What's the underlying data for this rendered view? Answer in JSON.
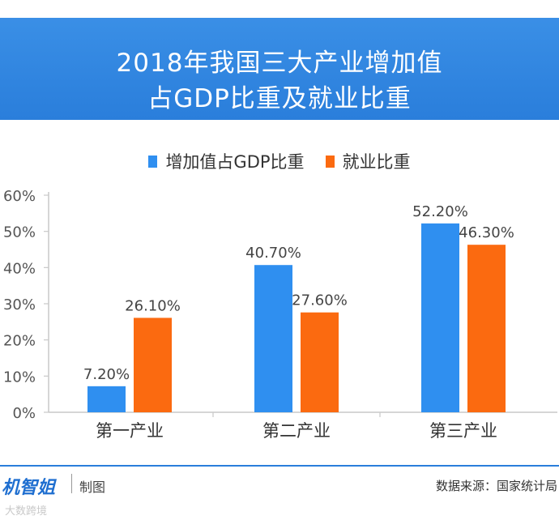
{
  "header": {
    "title_line1": "2018年我国三大产业增加值",
    "title_line2": "占GDP比重及就业比重"
  },
  "colors": {
    "header_bg": "#2a7edb",
    "series_blue": "#2f8ff0",
    "series_orange": "#fb6a10",
    "axis": "#c9c9c9"
  },
  "chart_data": {
    "type": "bar",
    "title": "2018年我国三大产业增加值占GDP比重及就业比重",
    "categories": [
      "第一产业",
      "第二产业",
      "第三产业"
    ],
    "series": [
      {
        "name": "增加值占GDP比重",
        "values": [
          7.2,
          40.7,
          52.2
        ],
        "labels": [
          "7.20%",
          "40.70%",
          "52.20%"
        ]
      },
      {
        "name": "就业比重",
        "values": [
          26.1,
          27.6,
          46.3
        ],
        "labels": [
          "26.10%",
          "27.60%",
          "46.30%"
        ]
      }
    ],
    "y_ticks": [
      "0%",
      "10%",
      "20%",
      "30%",
      "40%",
      "50%",
      "60%"
    ],
    "ylim": [
      0,
      60
    ],
    "legend_position": "top-center"
  },
  "footer": {
    "brand": "机智姐",
    "brand_sub": "制图",
    "source": "数据来源：国家统计局",
    "watermark": "大数跨境"
  }
}
